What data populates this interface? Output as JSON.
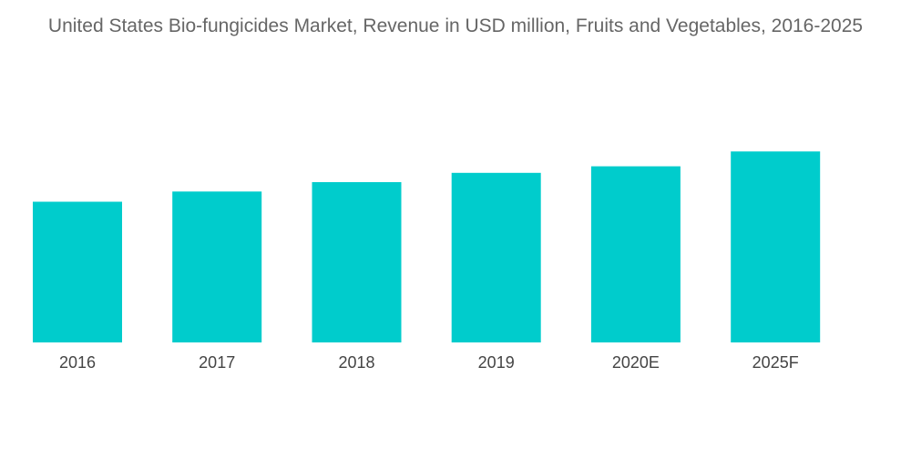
{
  "chart_data": {
    "type": "bar",
    "title": "United States Bio-fungicides Market, Revenue in USD million, Fruits and Vegetables, 2016-2025",
    "categories": [
      "2016",
      "2017",
      "2018",
      "2019",
      "2020E",
      "2025F"
    ],
    "values": [
      151,
      162,
      172,
      182,
      189,
      205
    ],
    "xlabel": "",
    "ylabel": "",
    "ylim": [
      0,
      260
    ],
    "grid": false,
    "legend": "none",
    "bar_color": "#00CCCC"
  }
}
